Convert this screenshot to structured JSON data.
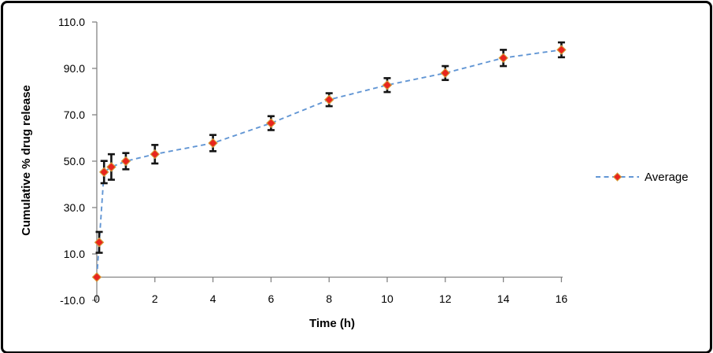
{
  "chart_data": {
    "type": "line",
    "title": "",
    "xlabel": "Time (h)",
    "ylabel": "Cumulative % drug release",
    "legend_position": "right",
    "grid": false,
    "xlim": [
      0,
      16
    ],
    "ylim": [
      -10,
      110
    ],
    "x_ticks": [
      0,
      2,
      4,
      6,
      8,
      10,
      12,
      14,
      16
    ],
    "x_tick_labels": [
      "0",
      "2",
      "4",
      "6",
      "8",
      "10",
      "12",
      "14",
      "16"
    ],
    "y_ticks": [
      110,
      90,
      70,
      50,
      30,
      10,
      -10
    ],
    "y_tick_labels": [
      "110.0",
      "90.0",
      "70.0",
      "50.0",
      "30.0",
      "10.0",
      "-10.0"
    ],
    "series": [
      {
        "name": "Average",
        "marker": "diamond",
        "line_style": "dashed",
        "x": [
          0,
          0.083,
          0.25,
          0.5,
          1,
          2,
          4,
          6,
          8,
          10,
          12,
          14,
          16
        ],
        "y": [
          0,
          15.0,
          45.3,
          47.5,
          50.0,
          53.0,
          57.8,
          66.4,
          76.5,
          82.8,
          88.0,
          94.5,
          98.0
        ],
        "error_y": [
          0,
          4.5,
          4.8,
          5.5,
          3.5,
          4.0,
          3.5,
          3.0,
          2.8,
          3.0,
          3.0,
          3.5,
          3.2
        ]
      }
    ],
    "colors": {
      "line": "#6296d4",
      "marker_fill": "#e8251d",
      "marker_edge": "#d6a13d",
      "error_bar": "#141414",
      "axis": "#848484",
      "text": "#000000"
    }
  }
}
